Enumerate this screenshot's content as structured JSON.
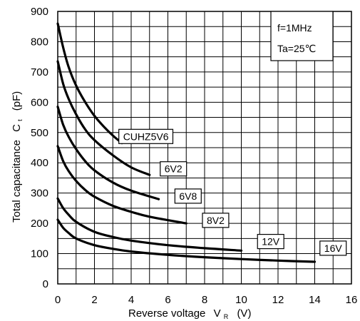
{
  "chart_data": {
    "type": "line",
    "xlabel": {
      "main": "Reverse voltage",
      "symbol": "V",
      "sub": "R",
      "unit": "(V)"
    },
    "ylabel": {
      "main": "Total capacitance",
      "symbol": "C",
      "sub": "t",
      "unit": "(pF)"
    },
    "xlim": [
      0,
      16
    ],
    "ylim": [
      0,
      900
    ],
    "xticks": [
      "0",
      "2",
      "4",
      "6",
      "8",
      "10",
      "12",
      "14",
      "16"
    ],
    "yticks": [
      "0",
      "100",
      "200",
      "300",
      "400",
      "500",
      "600",
      "700",
      "800",
      "900"
    ],
    "grid": true,
    "conditions": {
      "line1": "f=1MHz",
      "line2": "Ta=25℃"
    },
    "series": [
      {
        "name": "CUHZ5V6",
        "x": [
          0,
          0.3,
          0.6,
          1,
          1.5,
          2,
          2.5,
          3,
          3.5
        ],
        "values": [
          860,
          780,
          715,
          655,
          600,
          555,
          520,
          490,
          465
        ]
      },
      {
        "name": "6V2",
        "x": [
          0,
          0.3,
          0.6,
          1,
          1.5,
          2,
          3,
          4,
          5
        ],
        "values": [
          735,
          660,
          610,
          560,
          510,
          475,
          425,
          385,
          360
        ]
      },
      {
        "name": "6V8",
        "x": [
          0,
          0.3,
          0.6,
          1,
          1.5,
          2,
          3,
          4,
          5.5
        ],
        "values": [
          585,
          525,
          485,
          445,
          405,
          375,
          335,
          308,
          280
        ]
      },
      {
        "name": "8V2",
        "x": [
          0,
          0.3,
          0.6,
          1,
          1.5,
          2,
          3,
          4,
          5,
          7
        ],
        "values": [
          455,
          405,
          372,
          340,
          310,
          288,
          258,
          238,
          222,
          200
        ]
      },
      {
        "name": "12V",
        "x": [
          0,
          0.3,
          0.6,
          1,
          2,
          3,
          4,
          6,
          8,
          10
        ],
        "values": [
          282,
          250,
          228,
          205,
          172,
          155,
          143,
          128,
          118,
          110
        ]
      },
      {
        "name": "16V",
        "x": [
          0,
          0.3,
          0.6,
          1,
          2,
          3,
          4,
          6,
          8,
          10,
          12,
          14
        ],
        "values": [
          212,
          185,
          168,
          150,
          128,
          116,
          107,
          96,
          88,
          82,
          77,
          73
        ]
      }
    ]
  }
}
